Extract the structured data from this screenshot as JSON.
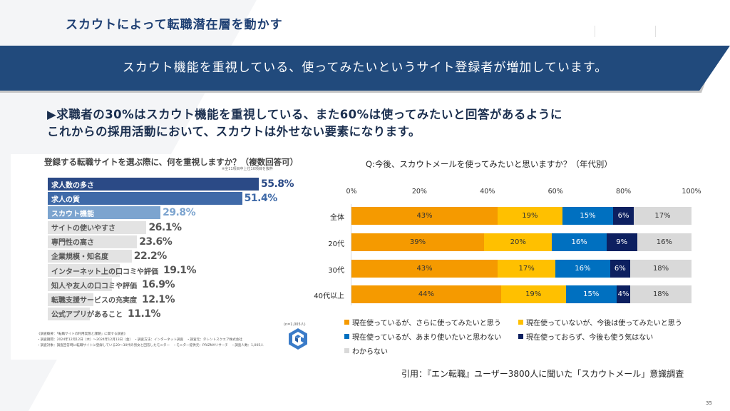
{
  "header": {
    "title": "スカウトによって転職潜在層を動かす"
  },
  "banner": {
    "text": "スカウト機能を重視している、使ってみたいというサイト登録者が増加しています。",
    "color": "#214a7c"
  },
  "lead": {
    "line1": "▶求職者の30%はスカウト機能を重視している、また60%は使ってみたいと回答があるように",
    "line2": "これからの採用活動において、スカウトは外せない要素になります。"
  },
  "left_chart_meta": {
    "note": "※全11項目中上位10項目を抜粋",
    "n_label": "(n=1,005人)",
    "logo_icon": "prizma-cube-logo-icon",
    "survey_lines": [
      "《調査概要：「転職サイトの利用実態と課題」に関する調査》",
      "・調査期間：2024年12月12日（木）～2024年12月13日（金）　・調査方法：インターネット調査　・調査元：タレントスクエア株式会社",
      "・調査対象：調査回答時に転職サイトに登録している20～30代の男女と回答したモニター　・モニター提供元：PRIZMAリサーチ　・調査人数：1,005人"
    ]
  },
  "right_chart_meta": {
    "citation": "引用：『エン転職』ユーザー3800人に聞いた「スカウトメール」意識調査"
  },
  "page_number": "35",
  "chart_data": [
    {
      "type": "bar",
      "orientation": "horizontal",
      "title": "登録する転職サイトを選ぶ際に、何を重視しますか？（複数回答可）",
      "xlabel": "",
      "ylabel": "",
      "unit": "%",
      "categories": [
        "求人数の多さ",
        "求人の質",
        "スカウト機能",
        "サイトの使いやすさ",
        "専門性の高さ",
        "企業規模・知名度",
        "インターネット上の口コミや評価",
        "知人や友人の口コミや評価",
        "転職支援サービスの充実度",
        "公式アプリがあること"
      ],
      "values": [
        55.8,
        51.4,
        29.8,
        26.1,
        23.6,
        22.2,
        19.1,
        16.9,
        12.1,
        11.1
      ],
      "value_labels": [
        "55.8%",
        "51.4%",
        "29.8%",
        "26.1%",
        "23.6%",
        "22.2%",
        "19.1%",
        "16.9%",
        "12.1%",
        "11.1%"
      ],
      "bar_colors": [
        "#2b4a86",
        "#3f6aa8",
        "#7ca4cf",
        "#e3e3e3",
        "#e3e3e3",
        "#e3e3e3",
        "#e3e3e3",
        "#e3e3e3",
        "#e3e3e3",
        "#e3e3e3"
      ],
      "label_colors": [
        "#ffffff",
        "#ffffff",
        "#ffffff",
        "#555555",
        "#555555",
        "#555555",
        "#555555",
        "#555555",
        "#555555",
        "#555555"
      ],
      "value_colors": [
        "#2b4a86",
        "#3f6aa8",
        "#7ca4cf",
        "#555555",
        "#555555",
        "#555555",
        "#555555",
        "#555555",
        "#555555",
        "#555555"
      ],
      "xlim": [
        0,
        60
      ],
      "grid": false
    },
    {
      "type": "bar",
      "orientation": "horizontal",
      "stacked": true,
      "title": "Q:今後、スカウトメールを使ってみたいと思いますか？（年代別）",
      "xlabel": "",
      "ylabel": "",
      "categories": [
        "全体",
        "20代",
        "30代",
        "40代以上"
      ],
      "x_ticks": [
        "0%",
        "20%",
        "40%",
        "60%",
        "80%",
        "100%"
      ],
      "xlim": [
        0,
        100
      ],
      "grid": false,
      "legend_position": "bottom",
      "series": [
        {
          "name": "現在使っているが、さらに使ってみたいと思う",
          "color": "#f59a00",
          "text_color": "#333333",
          "values": [
            43,
            39,
            43,
            44
          ]
        },
        {
          "name": "現在使っていないが、今後は使ってみたいと思う",
          "color": "#ffc000",
          "text_color": "#333333",
          "values": [
            19,
            20,
            17,
            19
          ]
        },
        {
          "name": "現在使っているが、あまり使いたいと思わない",
          "color": "#0070c0",
          "text_color": "#ffffff",
          "values": [
            15,
            16,
            16,
            15
          ]
        },
        {
          "name": "現在使っておらず、今後も使う気はない",
          "color": "#0d2060",
          "text_color": "#ffffff",
          "values": [
            6,
            9,
            6,
            4
          ]
        },
        {
          "name": "わからない",
          "color": "#d9d9d9",
          "text_color": "#333333",
          "values": [
            17,
            16,
            18,
            18
          ]
        }
      ]
    }
  ]
}
